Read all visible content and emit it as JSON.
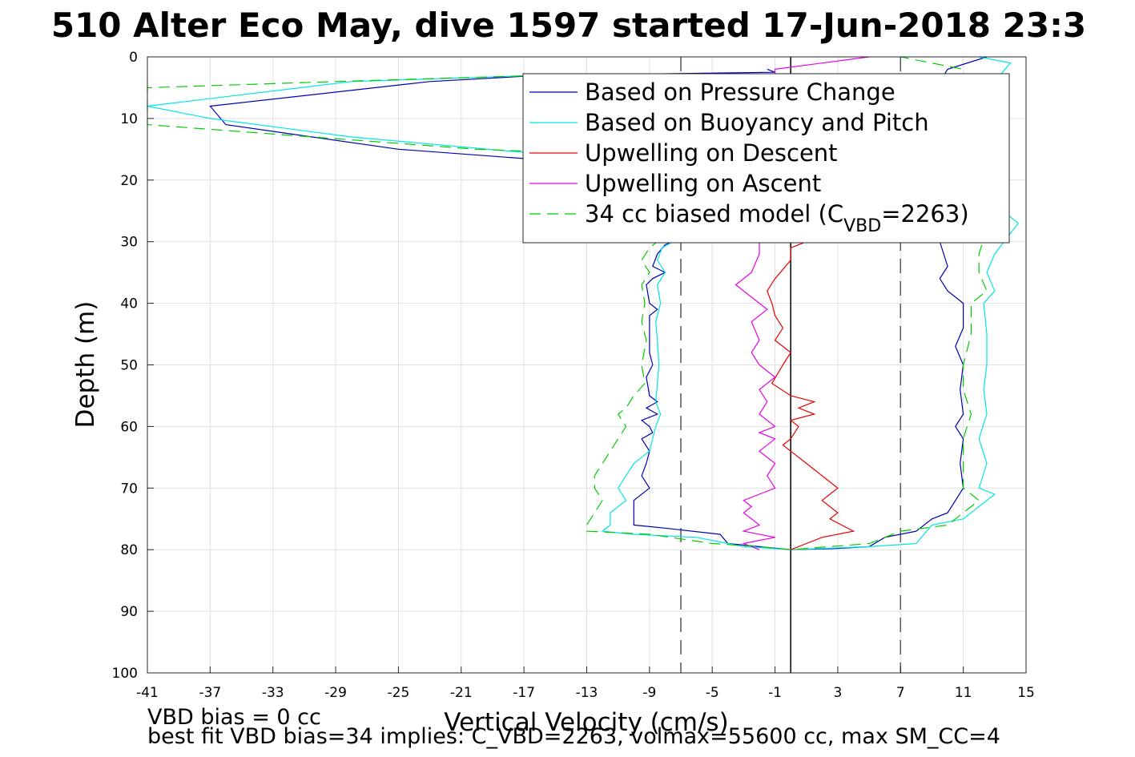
{
  "chart_data": {
    "type": "line",
    "title": "510 Alter Eco May, dive 1597 started 17-Jun-2018 23:3",
    "xlabel": "Vertical Velocity (cm/s)",
    "ylabel": "Depth (m)",
    "xlim": [
      -41,
      15
    ],
    "ylim": [
      0,
      100
    ],
    "y_reversed": true,
    "grid": true,
    "legend_position": "top-right",
    "x_ticks": [
      "-41",
      "-37",
      "-33",
      "-29",
      "-25",
      "-21",
      "-17",
      "-13",
      "-9",
      "-5",
      "-1",
      "3",
      "7",
      "11",
      "15"
    ],
    "y_ticks": [
      "0",
      "10",
      "20",
      "30",
      "40",
      "50",
      "60",
      "70",
      "80",
      "90",
      "100"
    ],
    "reference_lines": [
      {
        "x": -7,
        "style": "dashed",
        "color": "#555555"
      },
      {
        "x": 0,
        "style": "solid",
        "color": "#000000"
      },
      {
        "x": 7,
        "style": "dashed",
        "color": "#555555"
      }
    ],
    "legend": {
      "entries": [
        {
          "label": "Based on Pressure Change",
          "color": "#0000b3",
          "dash": false
        },
        {
          "label": "Based on Buoyancy and Pitch",
          "color": "#00e6e6",
          "dash": false
        },
        {
          "label": "Upwelling on Descent",
          "color": "#e60000",
          "dash": false
        },
        {
          "label": "Upwelling on Ascent",
          "color": "#e600e6",
          "dash": false
        },
        {
          "label": "34 cc biased model (C",
          "sub": "VBD",
          "suffix": "=2263)",
          "color": "#00cc00",
          "dash": true
        }
      ]
    },
    "series": [
      {
        "name": "Based on Pressure Change",
        "color": "#0000b3",
        "dash": false,
        "points": [
          [
            -1.5,
            2
          ],
          [
            -1,
            2.5
          ],
          [
            -16,
            3
          ],
          [
            -23,
            4
          ],
          [
            -37,
            8
          ],
          [
            -36,
            11
          ],
          [
            -25,
            15
          ],
          [
            -17,
            16.5
          ],
          [
            -9.5,
            17
          ],
          [
            -8.5,
            20
          ],
          [
            -8,
            22
          ],
          [
            -7.8,
            24
          ],
          [
            -7.5,
            26
          ],
          [
            -7.5,
            28
          ],
          [
            -7.5,
            30
          ],
          [
            -8,
            30.5
          ],
          [
            -8.5,
            32
          ],
          [
            -8.8,
            34
          ],
          [
            -8,
            35
          ],
          [
            -8.8,
            36
          ],
          [
            -9.2,
            37
          ],
          [
            -9,
            40
          ],
          [
            -8.5,
            41
          ],
          [
            -9,
            42
          ],
          [
            -9,
            45
          ],
          [
            -9,
            48
          ],
          [
            -8.8,
            50
          ],
          [
            -9.2,
            52
          ],
          [
            -9,
            55
          ],
          [
            -8.5,
            56
          ],
          [
            -9.2,
            57
          ],
          [
            -8.5,
            58
          ],
          [
            -9.5,
            59
          ],
          [
            -9,
            60
          ],
          [
            -8.8,
            61
          ],
          [
            -9.5,
            62
          ],
          [
            -9,
            64
          ],
          [
            -9.2,
            66
          ],
          [
            -9.5,
            68
          ],
          [
            -9,
            70
          ],
          [
            -10,
            72
          ],
          [
            -10,
            74
          ],
          [
            -10,
            76
          ],
          [
            -8,
            76.5
          ],
          [
            -4.5,
            77.5
          ],
          [
            -4,
            79
          ],
          [
            -2,
            79.5
          ],
          [
            0,
            80
          ],
          [
            3,
            79.8
          ],
          [
            5,
            79.5
          ],
          [
            6,
            78
          ],
          [
            8,
            77
          ],
          [
            9,
            75
          ],
          [
            10,
            74
          ],
          [
            11,
            70
          ],
          [
            10.8,
            66
          ],
          [
            11,
            62
          ],
          [
            10.5,
            60
          ],
          [
            11,
            58
          ],
          [
            10.8,
            54
          ],
          [
            11,
            50
          ],
          [
            10.5,
            47
          ],
          [
            11,
            44
          ],
          [
            11,
            40
          ],
          [
            10,
            38
          ],
          [
            9.5,
            36
          ],
          [
            10,
            34
          ],
          [
            9.5,
            30
          ],
          [
            9,
            28
          ],
          [
            9,
            26
          ],
          [
            8.5,
            24
          ],
          [
            8,
            20
          ],
          [
            8,
            16
          ],
          [
            8.5,
            12
          ],
          [
            9,
            8
          ],
          [
            9.5,
            4
          ],
          [
            10,
            2
          ],
          [
            12.5,
            0
          ]
        ]
      },
      {
        "name": "Based on Buoyancy and Pitch",
        "color": "#00e6e6",
        "dash": false,
        "points": [
          [
            -16,
            3
          ],
          [
            -28,
            4
          ],
          [
            -41,
            8
          ],
          [
            -37,
            10
          ],
          [
            -28,
            13
          ],
          [
            -17,
            15.5
          ],
          [
            -10,
            16
          ],
          [
            -9,
            20
          ],
          [
            -8.5,
            24
          ],
          [
            -8,
            28
          ],
          [
            -7.5,
            30
          ],
          [
            -8.2,
            31
          ],
          [
            -8.5,
            33
          ],
          [
            -8,
            35
          ],
          [
            -8.5,
            37
          ],
          [
            -8.3,
            40
          ],
          [
            -8.6,
            43
          ],
          [
            -8.5,
            46
          ],
          [
            -8.4,
            50
          ],
          [
            -8.5,
            53
          ],
          [
            -8.6,
            56
          ],
          [
            -8.3,
            58
          ],
          [
            -8.6,
            60
          ],
          [
            -8.8,
            62
          ],
          [
            -9,
            64
          ],
          [
            -10,
            66
          ],
          [
            -10.5,
            68
          ],
          [
            -11,
            70
          ],
          [
            -10.5,
            72
          ],
          [
            -11.5,
            74
          ],
          [
            -11.5,
            76
          ],
          [
            -12,
            77
          ],
          [
            -10,
            77.5
          ],
          [
            -6,
            78
          ],
          [
            -3,
            79.5
          ],
          [
            0,
            80
          ],
          [
            5,
            79.5
          ],
          [
            8,
            79
          ],
          [
            9,
            76
          ],
          [
            11,
            75
          ],
          [
            12,
            73
          ],
          [
            13,
            71
          ],
          [
            12,
            70
          ],
          [
            12.5,
            66
          ],
          [
            12,
            62
          ],
          [
            12.5,
            58
          ],
          [
            12.3,
            54
          ],
          [
            12.5,
            50
          ],
          [
            12.5,
            45
          ],
          [
            12.3,
            40
          ],
          [
            13,
            38
          ],
          [
            12.5,
            35
          ],
          [
            13,
            32
          ],
          [
            14.5,
            27
          ],
          [
            14,
            26
          ],
          [
            13,
            24
          ],
          [
            13,
            20
          ],
          [
            12.5,
            10
          ],
          [
            13,
            4
          ],
          [
            14,
            1
          ],
          [
            12,
            0
          ]
        ]
      },
      {
        "name": "Upwelling on Descent",
        "color": "#e60000",
        "dash": false,
        "points": [
          [
            1,
            30
          ],
          [
            0,
            31
          ],
          [
            0,
            33
          ],
          [
            -1,
            36
          ],
          [
            -1.5,
            38
          ],
          [
            -1.2,
            40
          ],
          [
            -1,
            42
          ],
          [
            -0.5,
            44
          ],
          [
            -1,
            46
          ],
          [
            0,
            48
          ],
          [
            -0.5,
            50
          ],
          [
            -1.2,
            53
          ],
          [
            0,
            55
          ],
          [
            1.5,
            56
          ],
          [
            0.5,
            57
          ],
          [
            1.5,
            58
          ],
          [
            0,
            59
          ],
          [
            0.5,
            60
          ],
          [
            0,
            62
          ],
          [
            -0.5,
            63
          ],
          [
            0,
            64
          ],
          [
            1,
            66
          ],
          [
            2,
            68
          ],
          [
            3,
            70
          ],
          [
            2.5,
            71
          ],
          [
            2,
            72
          ],
          [
            3,
            74
          ],
          [
            2.5,
            75
          ],
          [
            4,
            77
          ],
          [
            2,
            78
          ],
          [
            1,
            79
          ],
          [
            0,
            80
          ]
        ]
      },
      {
        "name": "Upwelling on Ascent",
        "color": "#e600e6",
        "dash": false,
        "points": [
          [
            -2,
            80
          ],
          [
            -3,
            79
          ],
          [
            -1,
            78
          ],
          [
            -3,
            77
          ],
          [
            -2,
            76
          ],
          [
            -3,
            74
          ],
          [
            -2.5,
            73
          ],
          [
            -3,
            72
          ],
          [
            -2,
            71
          ],
          [
            -1,
            70
          ],
          [
            -1.5,
            68
          ],
          [
            -1,
            66
          ],
          [
            -2,
            64
          ],
          [
            -1,
            62
          ],
          [
            -2,
            61
          ],
          [
            -1,
            60
          ],
          [
            -2,
            58
          ],
          [
            -1.5,
            56
          ],
          [
            -2,
            54
          ],
          [
            -1,
            52
          ],
          [
            -2,
            50
          ],
          [
            -2.5,
            48
          ],
          [
            -2,
            46
          ],
          [
            -2.5,
            43
          ],
          [
            -1.5,
            41
          ],
          [
            -2.5,
            39
          ],
          [
            -3.5,
            37
          ],
          [
            -2.5,
            35
          ],
          [
            -2,
            32
          ],
          [
            -2,
            30
          ],
          [
            -1,
            29
          ],
          [
            -1,
            27
          ],
          [
            -1.5,
            25
          ],
          [
            -1,
            23
          ],
          [
            -1,
            20
          ],
          [
            -2,
            18
          ],
          [
            -1.5,
            16
          ],
          [
            -1,
            14
          ],
          [
            -1,
            10
          ],
          [
            -1,
            6
          ],
          [
            -1,
            2
          ],
          [
            5,
            0
          ]
        ]
      },
      {
        "name": "34 cc biased model (C_VBD=2263)",
        "color": "#00cc00",
        "dash": true,
        "points": [
          [
            -16,
            3
          ],
          [
            -29,
            4
          ],
          [
            -41,
            5
          ],
          [
            -41,
            11
          ],
          [
            -20,
            15
          ],
          [
            -10,
            16
          ],
          [
            -9,
            20
          ],
          [
            -9,
            24
          ],
          [
            -8.5,
            28
          ],
          [
            -8.5,
            30
          ],
          [
            -9,
            31
          ],
          [
            -9.5,
            33
          ],
          [
            -9,
            35
          ],
          [
            -9.5,
            37
          ],
          [
            -9.3,
            40
          ],
          [
            -9.5,
            43
          ],
          [
            -9.2,
            46
          ],
          [
            -9.5,
            50
          ],
          [
            -9.3,
            53
          ],
          [
            -10,
            55
          ],
          [
            -10.5,
            57
          ],
          [
            -11,
            58
          ],
          [
            -10.5,
            60
          ],
          [
            -11,
            62
          ],
          [
            -11.5,
            64
          ],
          [
            -12,
            66
          ],
          [
            -12.5,
            68
          ],
          [
            -12.5,
            70
          ],
          [
            -12,
            72
          ],
          [
            -12.5,
            74
          ],
          [
            -13,
            76
          ],
          [
            -13,
            77
          ],
          [
            -9,
            77.5
          ],
          [
            -5,
            79
          ],
          [
            -2,
            79.5
          ],
          [
            0,
            80
          ],
          [
            5,
            79
          ],
          [
            7,
            77
          ],
          [
            10,
            76
          ],
          [
            11,
            74
          ],
          [
            12,
            72
          ],
          [
            11,
            70
          ],
          [
            11,
            66
          ],
          [
            11,
            62
          ],
          [
            11.5,
            58
          ],
          [
            11,
            54
          ],
          [
            11,
            50
          ],
          [
            11.5,
            45
          ],
          [
            11.5,
            40
          ],
          [
            12.5,
            38
          ],
          [
            12,
            35
          ],
          [
            12,
            32
          ],
          [
            12.5,
            28
          ],
          [
            12,
            26
          ],
          [
            12,
            20
          ],
          [
            11.5,
            10
          ],
          [
            11,
            2
          ],
          [
            7,
            0
          ]
        ]
      }
    ]
  },
  "footer": {
    "line1": "VBD bias = 0 cc",
    "line2": "best fit VBD bias=34 implies: C_VBD=2263, volmax=55600 cc, max SM_CC=4"
  }
}
